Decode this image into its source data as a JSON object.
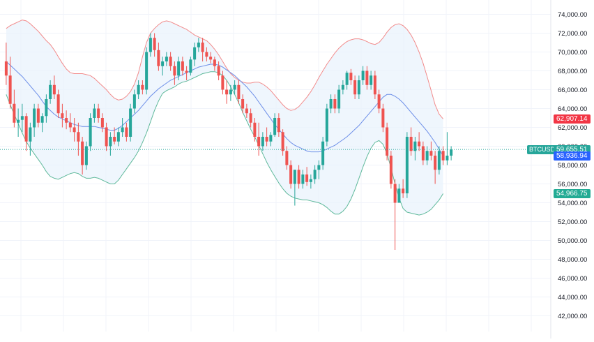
{
  "chart_data": {
    "type": "candlestick",
    "ylim": [
      40000,
      76000
    ],
    "y_ticks": [
      "74,000.00",
      "72,000.00",
      "70,000.00",
      "68,000.00",
      "66,000.00",
      "64,000.00",
      "62,000.00",
      "60,000.00",
      "58,000.00",
      "56,000.00",
      "54,000.00",
      "52,000.00",
      "50,000.00",
      "48,000.00",
      "46,000.00",
      "44,000.00",
      "42,000.00"
    ],
    "y_tick_values": [
      74000,
      72000,
      70000,
      68000,
      66000,
      64000,
      62000,
      60000,
      58000,
      56000,
      54000,
      52000,
      50000,
      48000,
      46000,
      44000,
      42000
    ],
    "grid": true,
    "colors": {
      "up": "#26a69a",
      "down": "#ef5350",
      "upper_band": "#f28b8b",
      "middle_band": "#6c8ee8",
      "lower_band": "#5fb99b",
      "band_fill": "#eaf3fc"
    },
    "labels": {
      "symbol": "BTCUSD",
      "current_price": "59,655.51",
      "upper_band_value": "62,907.14",
      "middle_band_value": "58,936.94",
      "lower_band_value": "54,966.75"
    },
    "price_tag_values": {
      "current": 59655.51,
      "upper": 62907.14,
      "middle": 58936.94,
      "lower": 54966.75
    },
    "candles": [
      [
        69000,
        71000,
        66500,
        67500
      ],
      [
        67500,
        69500,
        64000,
        64500
      ],
      [
        64500,
        66000,
        62000,
        62500
      ],
      [
        62500,
        64000,
        61000,
        62800
      ],
      [
        62800,
        64500,
        61500,
        63200
      ],
      [
        63200,
        63500,
        59500,
        60500
      ],
      [
        60500,
        62500,
        59000,
        62000
      ],
      [
        62000,
        64500,
        61000,
        64000
      ],
      [
        64000,
        64500,
        62000,
        62500
      ],
      [
        62500,
        63500,
        61500,
        63200
      ],
      [
        63200,
        65500,
        62500,
        65000
      ],
      [
        65000,
        67000,
        64500,
        66500
      ],
      [
        66500,
        67500,
        65000,
        65500
      ],
      [
        65500,
        66000,
        63000,
        63500
      ],
      [
        63500,
        64500,
        62000,
        63000
      ],
      [
        63000,
        63800,
        61800,
        62500
      ],
      [
        62500,
        63500,
        61500,
        62000
      ],
      [
        62000,
        63000,
        60500,
        61500
      ],
      [
        61500,
        62500,
        59000,
        60500
      ],
      [
        60500,
        61000,
        57000,
        58000
      ],
      [
        58000,
        60500,
        57500,
        60000
      ],
      [
        60000,
        63500,
        59500,
        63000
      ],
      [
        63000,
        64500,
        62500,
        64000
      ],
      [
        64000,
        64500,
        62500,
        63000
      ],
      [
        63000,
        63500,
        61500,
        62000
      ],
      [
        62000,
        62500,
        59500,
        60000
      ],
      [
        60000,
        61500,
        59000,
        61000
      ],
      [
        61000,
        62000,
        60200,
        60500
      ],
      [
        60500,
        62000,
        60000,
        61500
      ],
      [
        61500,
        63000,
        61000,
        62000
      ],
      [
        62000,
        62500,
        60500,
        61000
      ],
      [
        61000,
        64500,
        60500,
        64000
      ],
      [
        64000,
        66000,
        63500,
        65500
      ],
      [
        65500,
        67000,
        65000,
        66500
      ],
      [
        66500,
        67000,
        65500,
        66000
      ],
      [
        66000,
        70500,
        65500,
        70000
      ],
      [
        70000,
        72000,
        69500,
        71500
      ],
      [
        71500,
        72000,
        69500,
        70200
      ],
      [
        70200,
        71000,
        68000,
        68500
      ],
      [
        68500,
        69500,
        67500,
        69000
      ],
      [
        69000,
        70000,
        68500,
        69500
      ],
      [
        69500,
        70000,
        68000,
        68500
      ],
      [
        68500,
        69000,
        66500,
        67500
      ],
      [
        67500,
        69500,
        67000,
        69000
      ],
      [
        69000,
        69500,
        67500,
        68000
      ],
      [
        68000,
        68500,
        67000,
        67800
      ],
      [
        67800,
        69500,
        67500,
        69200
      ],
      [
        69200,
        71000,
        68500,
        70500
      ],
      [
        70500,
        71500,
        70000,
        71000
      ],
      [
        71000,
        71500,
        69000,
        70000
      ],
      [
        70000,
        70500,
        69000,
        69500
      ],
      [
        69500,
        70000,
        68800,
        69200
      ],
      [
        69200,
        69500,
        68000,
        68500
      ],
      [
        68500,
        69000,
        67000,
        67500
      ],
      [
        67500,
        68000,
        65500,
        66000
      ],
      [
        66000,
        67000,
        64500,
        65500
      ],
      [
        65500,
        66500,
        64800,
        66000
      ],
      [
        66000,
        67000,
        65500,
        66500
      ],
      [
        66500,
        67000,
        64500,
        65000
      ],
      [
        65000,
        65500,
        63500,
        64000
      ],
      [
        64000,
        64500,
        63000,
        63500
      ],
      [
        63500,
        64000,
        62000,
        62500
      ],
      [
        62500,
        63000,
        60500,
        61000
      ],
      [
        61000,
        62500,
        59000,
        60000
      ],
      [
        60000,
        61500,
        59500,
        61000
      ],
      [
        61000,
        62000,
        60000,
        60500
      ],
      [
        60500,
        61500,
        60000,
        61200
      ],
      [
        61200,
        63500,
        61000,
        63000
      ],
      [
        63000,
        63500,
        61000,
        61500
      ],
      [
        61500,
        61800,
        59000,
        59500
      ],
      [
        59500,
        60000,
        57500,
        58000
      ],
      [
        58000,
        58500,
        55500,
        56000
      ],
      [
        56000,
        57500,
        53700,
        57500
      ],
      [
        57500,
        58000,
        55500,
        56000
      ],
      [
        56000,
        57500,
        55500,
        57000
      ],
      [
        57000,
        57800,
        55800,
        56200
      ],
      [
        56200,
        57000,
        55500,
        56500
      ],
      [
        56500,
        58000,
        56000,
        57500
      ],
      [
        57500,
        58500,
        56500,
        58000
      ],
      [
        58000,
        61000,
        57500,
        60500
      ],
      [
        60500,
        64500,
        60000,
        64000
      ],
      [
        64000,
        65500,
        63500,
        65000
      ],
      [
        65000,
        65500,
        63500,
        64000
      ],
      [
        64000,
        66500,
        63500,
        66000
      ],
      [
        66000,
        67000,
        65500,
        66500
      ],
      [
        66500,
        68000,
        66000,
        67800
      ],
      [
        67800,
        68200,
        66500,
        67000
      ],
      [
        67000,
        67500,
        65000,
        65500
      ],
      [
        65500,
        67500,
        65000,
        67000
      ],
      [
        67000,
        68500,
        66500,
        68000
      ],
      [
        68000,
        68500,
        66000,
        66500
      ],
      [
        66500,
        68000,
        66000,
        67500
      ],
      [
        67500,
        68000,
        65000,
        65500
      ],
      [
        65500,
        66000,
        63500,
        64000
      ],
      [
        64000,
        64500,
        61500,
        62000
      ],
      [
        62000,
        62500,
        58500,
        59000
      ],
      [
        59000,
        59500,
        55500,
        56000
      ],
      [
        56000,
        56500,
        49000,
        54000
      ],
      [
        54000,
        56000,
        54000,
        55500
      ],
      [
        55500,
        56500,
        54500,
        55000
      ],
      [
        55000,
        61500,
        54500,
        61000
      ],
      [
        61000,
        62000,
        59000,
        59500
      ],
      [
        59500,
        61000,
        58500,
        60500
      ],
      [
        60500,
        61500,
        59500,
        60000
      ],
      [
        60000,
        60500,
        58000,
        58500
      ],
      [
        58500,
        60000,
        58000,
        59500
      ],
      [
        59500,
        60500,
        58500,
        59000
      ],
      [
        59000,
        59500,
        56000,
        57500
      ],
      [
        57500,
        60000,
        57000,
        59500
      ],
      [
        59500,
        60000,
        58000,
        58500
      ],
      [
        58500,
        61500,
        58000,
        59000
      ],
      [
        59000,
        60000,
        58500,
        59655.51
      ]
    ],
    "upper_band": [
      72500,
      72800,
      73000,
      73200,
      73400,
      73300,
      73000,
      72600,
      72200,
      71700,
      71200,
      70800,
      70200,
      69500,
      68800,
      68200,
      67800,
      67700,
      67700,
      67700,
      67600,
      67500,
      67200,
      66800,
      66400,
      66000,
      65500,
      65100,
      64900,
      65000,
      65300,
      65800,
      66600,
      67800,
      69500,
      71000,
      72000,
      72500,
      72900,
      73200,
      73300,
      73200,
      73000,
      72800,
      72600,
      72400,
      72100,
      71800,
      71600,
      71400,
      71200,
      70800,
      70300,
      69700,
      69000,
      68300,
      67700,
      67300,
      67000,
      66800,
      66700,
      66700,
      66800,
      66800,
      66600,
      66300,
      65900,
      65400,
      64900,
      64400,
      64000,
      63800,
      63900,
      64200,
      64700,
      65200,
      65800,
      66500,
      67300,
      68000,
      68700,
      69300,
      69900,
      70400,
      70800,
      71100,
      71300,
      71400,
      71400,
      71300,
      71100,
      70900,
      70800,
      71000,
      71500,
      72100,
      72600,
      72900,
      73000,
      72800,
      72400,
      71800,
      71000,
      70000,
      68800,
      67400,
      65900,
      64400,
      63400,
      62907.14
    ],
    "middle_band": [
      69000,
      68600,
      68200,
      67800,
      67400,
      66900,
      66400,
      65900,
      65400,
      64800,
      64200,
      63800,
      63400,
      63100,
      62900,
      62700,
      62500,
      62300,
      62200,
      62100,
      62100,
      62100,
      62100,
      62000,
      61900,
      61800,
      61700,
      61700,
      61900,
      62200,
      62600,
      63000,
      63400,
      63800,
      64300,
      64800,
      65300,
      65700,
      66100,
      66400,
      66700,
      67000,
      67200,
      67400,
      67600,
      67800,
      68000,
      68200,
      68400,
      68500,
      68600,
      68700,
      68700,
      68600,
      68400,
      68100,
      67800,
      67500,
      67100,
      66700,
      66300,
      65800,
      65300,
      64700,
      64100,
      63500,
      62900,
      62300,
      61800,
      61300,
      60800,
      60400,
      60100,
      59900,
      59700,
      59500,
      59400,
      59400,
      59400,
      59500,
      59700,
      59900,
      60100,
      60400,
      60700,
      61000,
      61400,
      61800,
      62200,
      62700,
      63200,
      63700,
      64200,
      64700,
      65200,
      65500,
      65500,
      65300,
      65000,
      64600,
      64100,
      63600,
      63100,
      62600,
      62100,
      61600,
      61000,
      60400,
      59700,
      58936.94
    ],
    "lower_band": [
      65500,
      64400,
      63400,
      62400,
      61400,
      60500,
      59800,
      59200,
      58600,
      58000,
      57300,
      56800,
      56600,
      56500,
      56700,
      56900,
      57100,
      57200,
      57100,
      56800,
      56600,
      56600,
      56700,
      56600,
      56400,
      56200,
      56000,
      56000,
      56400,
      57000,
      57600,
      58200,
      58800,
      59500,
      60400,
      61400,
      62600,
      63800,
      64800,
      65600,
      65900,
      66100,
      66300,
      66600,
      66800,
      66900,
      67100,
      67300,
      67500,
      67700,
      67800,
      67900,
      67900,
      67800,
      67500,
      67000,
      66300,
      65500,
      64600,
      63600,
      62700,
      61800,
      61000,
      60100,
      59200,
      58300,
      57500,
      56800,
      56100,
      55500,
      55000,
      54700,
      54500,
      54400,
      54300,
      54300,
      54200,
      54100,
      54000,
      53800,
      53500,
      53100,
      52800,
      52800,
      53100,
      53600,
      54400,
      55400,
      56600,
      57800,
      58900,
      59800,
      60400,
      60600,
      60200,
      59200,
      57700,
      56000,
      54500,
      53400,
      53000,
      52900,
      52800,
      52700,
      52800,
      53000,
      53300,
      53800,
      54300,
      54966.75
    ]
  }
}
